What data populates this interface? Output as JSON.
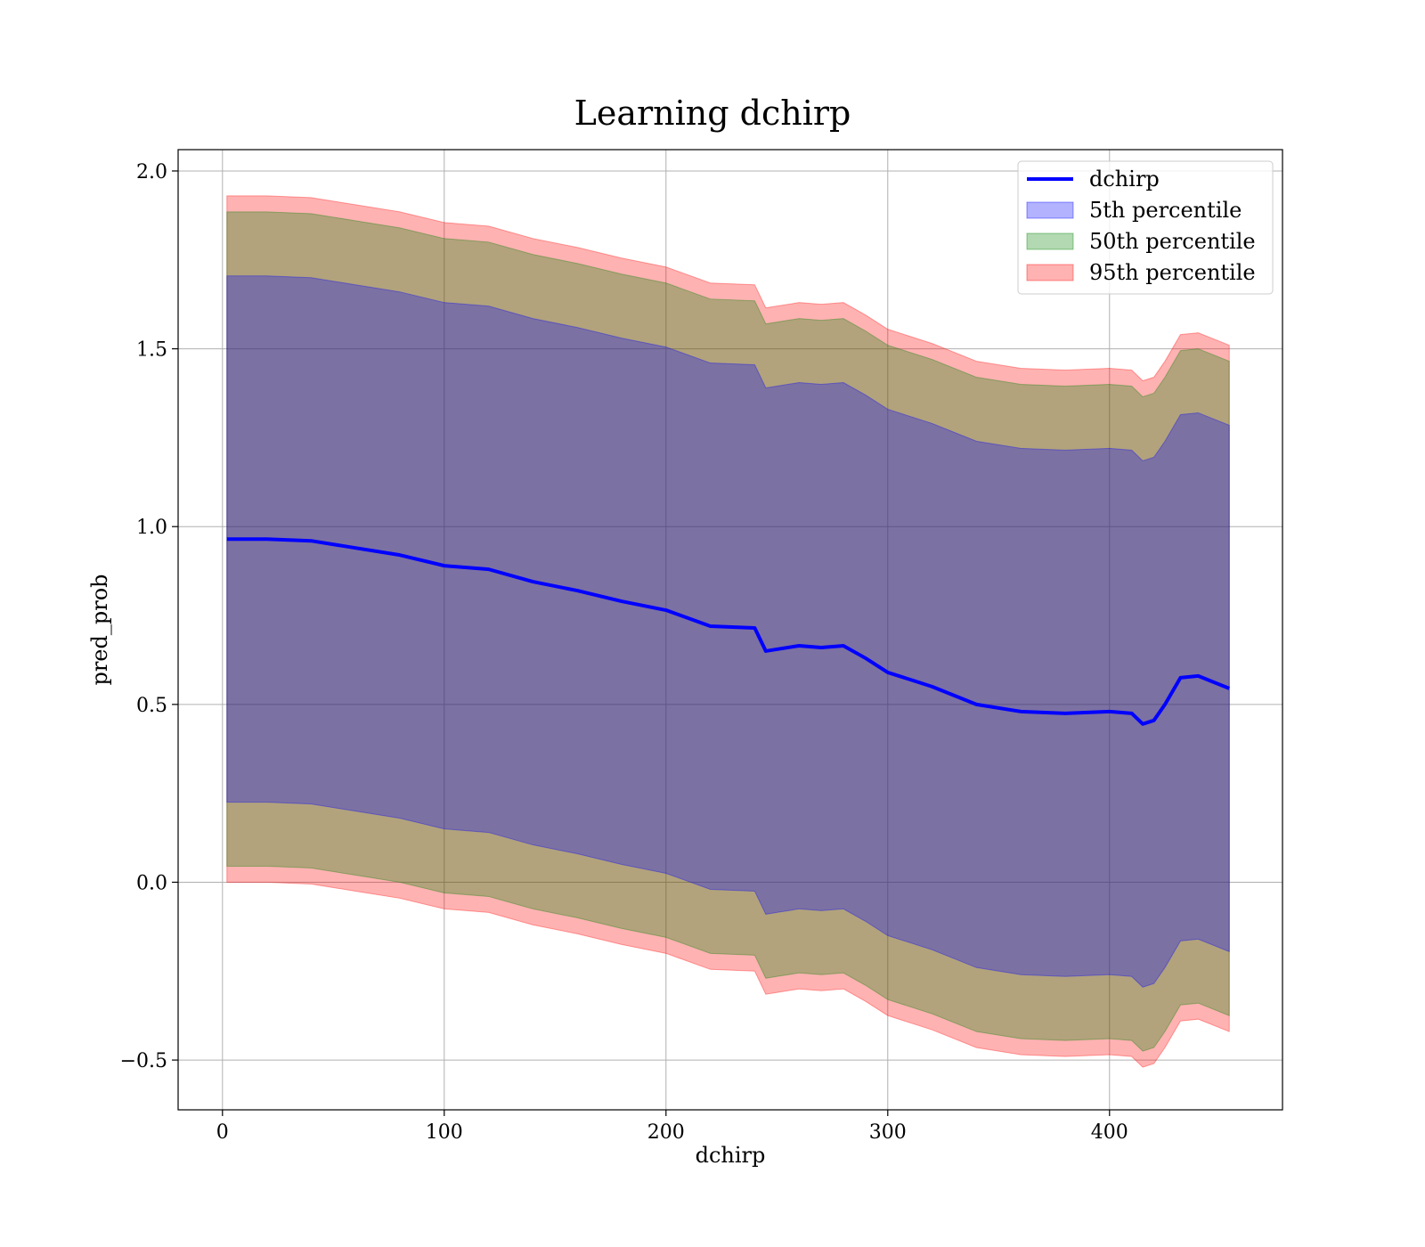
{
  "chart_data": {
    "type": "area",
    "title": "Learning dchirp",
    "xlabel": "dchirp",
    "ylabel": "pred_prob",
    "xlim": [
      -20,
      478
    ],
    "ylim": [
      -0.64,
      2.06
    ],
    "x_ticks": [
      0,
      100,
      200,
      300,
      400
    ],
    "x_tick_labels": [
      "0",
      "100",
      "200",
      "300",
      "400"
    ],
    "y_ticks": [
      -0.5,
      0.0,
      0.5,
      1.0,
      1.5,
      2.0
    ],
    "y_tick_labels": [
      "−0.5",
      "0.0",
      "0.5",
      "1.0",
      "1.5",
      "2.0"
    ],
    "grid": true,
    "legend_position": "upper right",
    "x": [
      2,
      20,
      40,
      60,
      80,
      100,
      120,
      140,
      160,
      180,
      200,
      220,
      240,
      245,
      250,
      260,
      270,
      280,
      290,
      300,
      320,
      340,
      360,
      380,
      400,
      410,
      415,
      420,
      425,
      432,
      440,
      454
    ],
    "line": {
      "name": "dchirp",
      "color": "#0000ff",
      "values": [
        0.965,
        0.965,
        0.96,
        0.94,
        0.92,
        0.89,
        0.88,
        0.845,
        0.82,
        0.79,
        0.765,
        0.72,
        0.715,
        0.65,
        0.655,
        0.665,
        0.66,
        0.665,
        0.63,
        0.59,
        0.55,
        0.5,
        0.48,
        0.475,
        0.48,
        0.475,
        0.445,
        0.455,
        0.5,
        0.575,
        0.58,
        0.545
      ]
    },
    "bands": [
      {
        "name": "5th percentile",
        "color": "#0000ff",
        "opacity": 0.3,
        "upper": [
          1.705,
          1.705,
          1.7,
          1.68,
          1.66,
          1.63,
          1.62,
          1.585,
          1.56,
          1.53,
          1.505,
          1.46,
          1.455,
          1.39,
          1.395,
          1.405,
          1.4,
          1.405,
          1.37,
          1.33,
          1.29,
          1.24,
          1.22,
          1.215,
          1.22,
          1.215,
          1.185,
          1.195,
          1.24,
          1.315,
          1.32,
          1.285
        ],
        "lower": [
          0.225,
          0.225,
          0.22,
          0.2,
          0.18,
          0.15,
          0.14,
          0.105,
          0.08,
          0.05,
          0.025,
          -0.02,
          -0.025,
          -0.09,
          -0.085,
          -0.075,
          -0.08,
          -0.075,
          -0.11,
          -0.15,
          -0.19,
          -0.24,
          -0.26,
          -0.265,
          -0.26,
          -0.265,
          -0.295,
          -0.285,
          -0.24,
          -0.165,
          -0.16,
          -0.195
        ]
      },
      {
        "name": "50th percentile",
        "color": "#008000",
        "opacity": 0.3,
        "upper": [
          1.885,
          1.885,
          1.88,
          1.86,
          1.84,
          1.81,
          1.8,
          1.765,
          1.74,
          1.71,
          1.685,
          1.64,
          1.635,
          1.57,
          1.575,
          1.585,
          1.58,
          1.585,
          1.55,
          1.51,
          1.47,
          1.42,
          1.4,
          1.395,
          1.4,
          1.395,
          1.365,
          1.375,
          1.42,
          1.495,
          1.5,
          1.465
        ],
        "lower": [
          0.045,
          0.045,
          0.04,
          0.02,
          0.0,
          -0.03,
          -0.04,
          -0.075,
          -0.1,
          -0.13,
          -0.155,
          -0.2,
          -0.205,
          -0.27,
          -0.265,
          -0.255,
          -0.26,
          -0.255,
          -0.29,
          -0.33,
          -0.37,
          -0.42,
          -0.44,
          -0.445,
          -0.44,
          -0.445,
          -0.475,
          -0.465,
          -0.42,
          -0.345,
          -0.34,
          -0.375
        ]
      },
      {
        "name": "95th percentile",
        "color": "#ff0000",
        "opacity": 0.3,
        "upper": [
          1.93,
          1.93,
          1.925,
          1.905,
          1.885,
          1.855,
          1.845,
          1.81,
          1.785,
          1.755,
          1.73,
          1.685,
          1.68,
          1.615,
          1.62,
          1.63,
          1.625,
          1.63,
          1.595,
          1.555,
          1.515,
          1.465,
          1.445,
          1.44,
          1.445,
          1.44,
          1.41,
          1.42,
          1.465,
          1.54,
          1.545,
          1.51
        ],
        "lower": [
          0.0,
          0.0,
          -0.005,
          -0.025,
          -0.045,
          -0.075,
          -0.085,
          -0.12,
          -0.145,
          -0.175,
          -0.2,
          -0.245,
          -0.25,
          -0.315,
          -0.31,
          -0.3,
          -0.305,
          -0.3,
          -0.335,
          -0.375,
          -0.415,
          -0.465,
          -0.485,
          -0.49,
          -0.485,
          -0.49,
          -0.52,
          -0.51,
          -0.465,
          -0.39,
          -0.385,
          -0.42
        ]
      }
    ]
  }
}
